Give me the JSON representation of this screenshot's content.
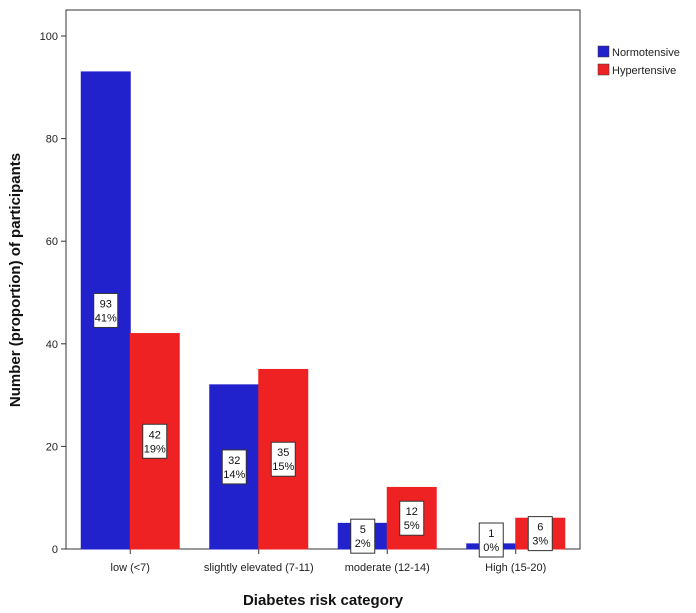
{
  "chart_data": {
    "type": "bar",
    "title": "",
    "xlabel": "Diabetes risk category",
    "ylabel": "Number (proportion) of participants",
    "categories": [
      "low (<7)",
      "slightly elevated (7-11)",
      "moderate (12-14)",
      "High (15-20)"
    ],
    "series": [
      {
        "name": "Normotensive",
        "color": "#2222cc",
        "values": [
          93,
          32,
          5,
          1
        ],
        "labels": [
          [
            "93",
            "41%"
          ],
          [
            "32",
            "14%"
          ],
          [
            "5",
            "2%"
          ],
          [
            "1",
            "0%"
          ]
        ]
      },
      {
        "name": "Hypertensive",
        "color": "#ee2222",
        "values": [
          42,
          35,
          12,
          6
        ],
        "labels": [
          [
            "42",
            "19%"
          ],
          [
            "35",
            "15%"
          ],
          [
            "12",
            "5%"
          ],
          [
            "6",
            "3%"
          ]
        ]
      }
    ],
    "ylim": [
      0,
      100
    ],
    "yticks": [
      "0",
      "20",
      "40",
      "60",
      "80",
      "100"
    ],
    "grid": false,
    "legend_position": "top-right"
  }
}
